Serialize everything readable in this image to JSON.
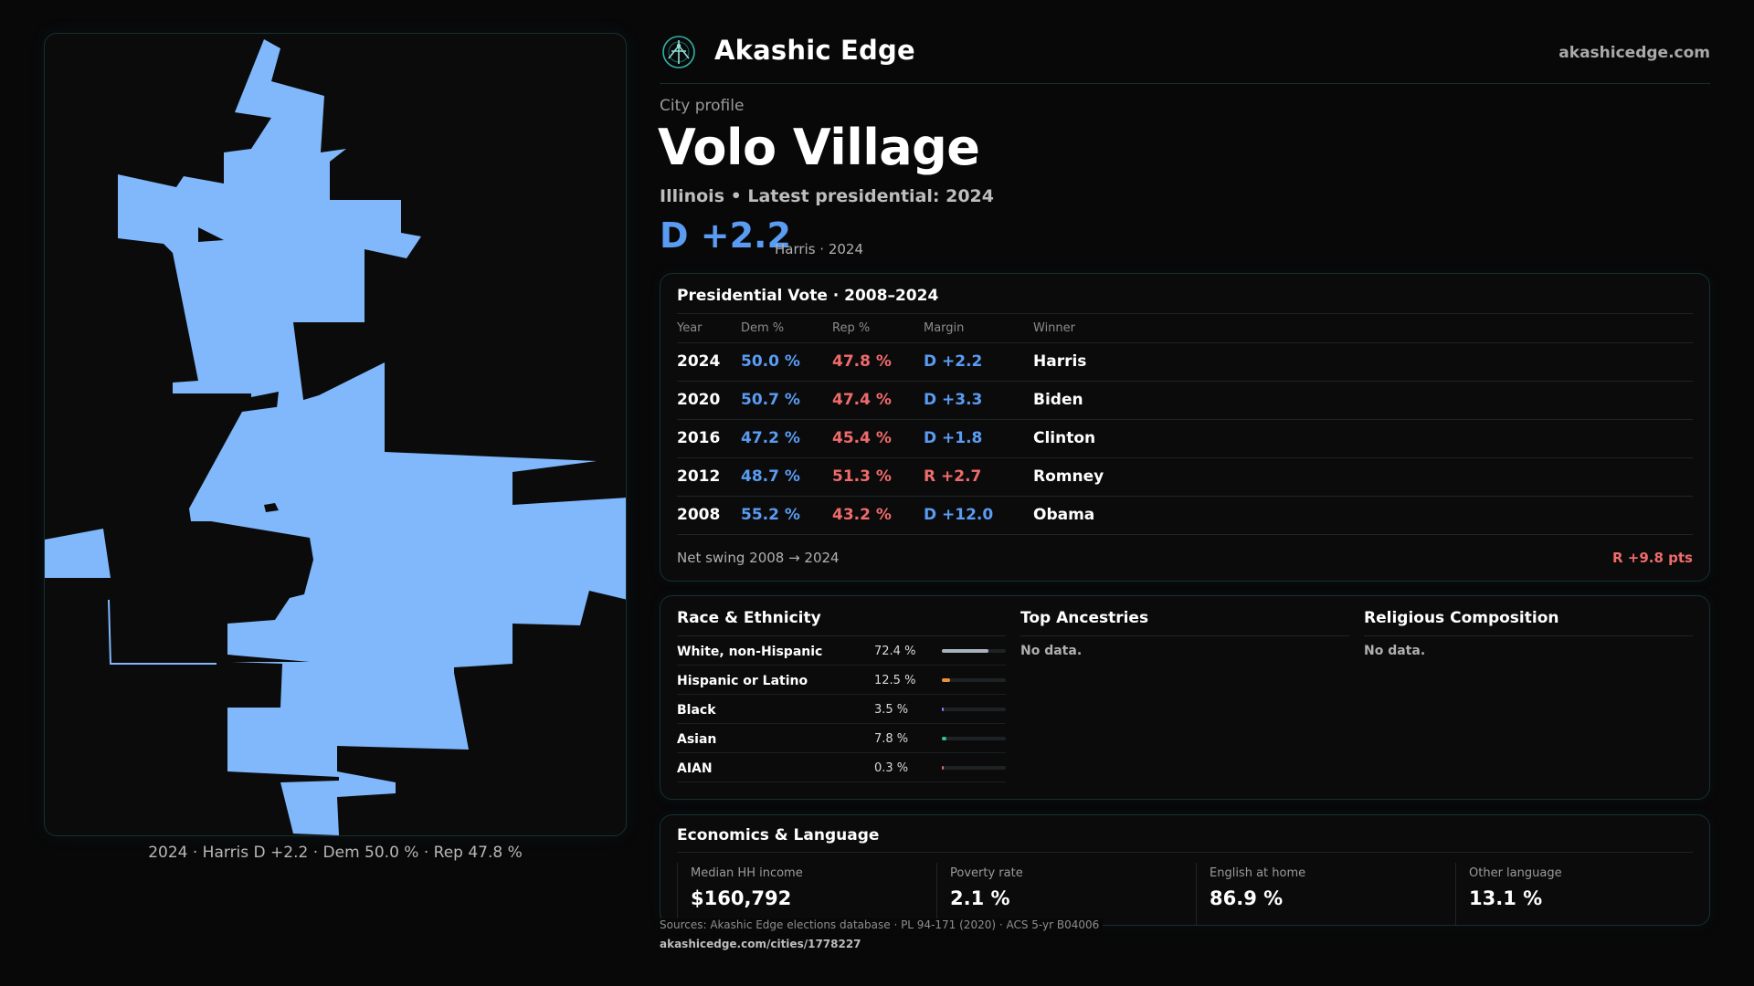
{
  "brand": {
    "name": "Akashic Edge",
    "url": "akashicedge.com"
  },
  "profile": {
    "kicker": "City profile",
    "title": "Volo Village",
    "subtitle": "Illinois • Latest presidential: 2024",
    "margin": "D +2.2",
    "margin_note": "Harris · 2024"
  },
  "map": {
    "caption": "2024 · Harris D +2.2 · Dem 50.0 % · Rep 47.8 %",
    "fill_color": "#80b8fb"
  },
  "presidential": {
    "title": "Presidential Vote · 2008–2024",
    "headers": {
      "year": "Year",
      "dem": "Dem %",
      "rep": "Rep %",
      "margin": "Margin",
      "winner": "Winner"
    },
    "rows": [
      {
        "year": "2024",
        "dem": "50.0 %",
        "rep": "47.8 %",
        "margin": "D +2.2",
        "party": "D",
        "winner": "Harris"
      },
      {
        "year": "2020",
        "dem": "50.7 %",
        "rep": "47.4 %",
        "margin": "D +3.3",
        "party": "D",
        "winner": "Biden"
      },
      {
        "year": "2016",
        "dem": "47.2 %",
        "rep": "45.4 %",
        "margin": "D +1.8",
        "party": "D",
        "winner": "Clinton"
      },
      {
        "year": "2012",
        "dem": "48.7 %",
        "rep": "51.3 %",
        "margin": "R +2.7",
        "party": "R",
        "winner": "Romney"
      },
      {
        "year": "2008",
        "dem": "55.2 %",
        "rep": "43.2 %",
        "margin": "D +12.0",
        "party": "D",
        "winner": "Obama"
      }
    ],
    "swing_label": "Net swing 2008 → 2024",
    "swing_value": "R +9.8 pts"
  },
  "race": {
    "title": "Race & Ethnicity",
    "rows": [
      {
        "label": "White, non-Hispanic",
        "pct": "72.4 %",
        "value": 72.4,
        "color": "#a9b1bc"
      },
      {
        "label": "Hispanic or Latino",
        "pct": "12.5 %",
        "value": 12.5,
        "color": "#e8913a"
      },
      {
        "label": "Black",
        "pct": "3.5 %",
        "value": 3.5,
        "color": "#8f7cf0"
      },
      {
        "label": "Asian",
        "pct": "7.8 %",
        "value": 7.8,
        "color": "#2fc48d"
      },
      {
        "label": "AIAN",
        "pct": "0.3 %",
        "value": 0.3,
        "color": "#e06a6a"
      }
    ]
  },
  "ancestries": {
    "title": "Top Ancestries",
    "empty": "No data."
  },
  "religion": {
    "title": "Religious Composition",
    "empty": "No data."
  },
  "economics": {
    "title": "Economics & Language",
    "stats": [
      {
        "label": "Median HH income",
        "value": "$160,792"
      },
      {
        "label": "Poverty rate",
        "value": "2.1 %"
      },
      {
        "label": "English at home",
        "value": "86.9 %"
      },
      {
        "label": "Other language",
        "value": "13.1 %"
      }
    ]
  },
  "footer": {
    "sources": "Sources: Akashic Edge elections database · PL 94-171 (2020) · ACS 5-yr B04006",
    "page_url": "akashicedge.com/cities/1778227"
  },
  "colors": {
    "dem": "#5a9cf2",
    "rep": "#f06b6b",
    "accent": "#2fb3a8"
  }
}
